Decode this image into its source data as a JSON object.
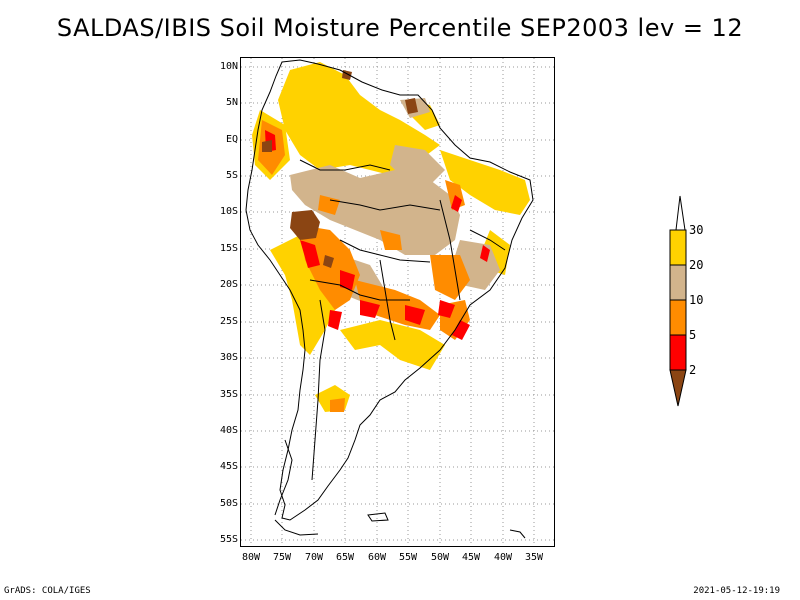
{
  "title": "SALDAS/IBIS Soil Moisture Percentile SEP2003 lev = 12",
  "map": {
    "lat_labels": [
      "10N",
      "5N",
      "EQ",
      "5S",
      "10S",
      "15S",
      "20S",
      "25S",
      "30S",
      "35S",
      "40S",
      "45S",
      "50S",
      "55S"
    ],
    "lon_labels": [
      "80W",
      "75W",
      "70W",
      "65W",
      "60W",
      "55W",
      "50W",
      "45W",
      "40W",
      "35W"
    ],
    "lon_range": [
      -81,
      -31
    ],
    "lat_range": [
      -56,
      12
    ],
    "grid": true
  },
  "legend": {
    "labels": [
      "30",
      "20",
      "10",
      "5",
      "2"
    ],
    "bins": [
      {
        "label": "20-30",
        "color": "#ffd200"
      },
      {
        "label": "10-20",
        "color": "#d2b48c"
      },
      {
        "label": "5-10",
        "color": "#ff8c00"
      },
      {
        "label": "2-5",
        "color": "#ff0000"
      },
      {
        "label": "<2",
        "color": "#8b4513"
      }
    ],
    "top_color": "#ffffff"
  },
  "footer": {
    "left": "GrADS: COLA/IGES",
    "right": "2021-05-12-19:19"
  }
}
